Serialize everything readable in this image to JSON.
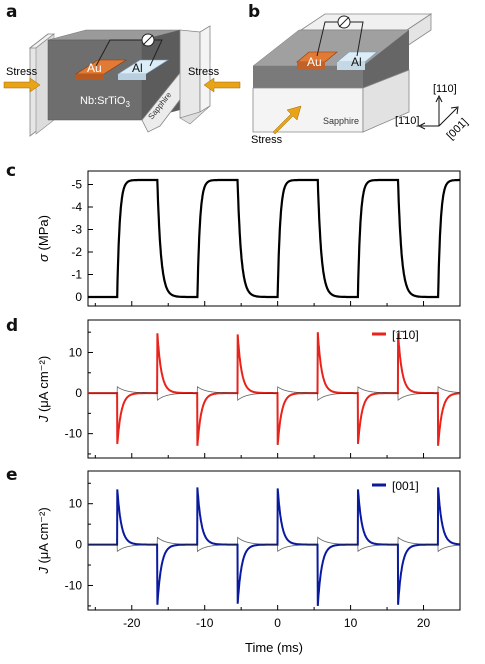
{
  "panel_letters": [
    "a",
    "b",
    "c",
    "d",
    "e"
  ],
  "schematic_a": {
    "stress_left": "Stress",
    "stress_right": "Stress",
    "electrode_au": "Au",
    "electrode_al": "Al",
    "substrate_label": "Nb:SrTiO",
    "substrate_sub": "3",
    "sapphire": "Sapphire",
    "colors": {
      "au": "#e07a35",
      "al": "#d9ecf8",
      "stress": "#e8a317",
      "substrate": "#707070"
    }
  },
  "schematic_b": {
    "electrode_au": "Au",
    "electrode_al": "Al",
    "sapphire": "Sapphire",
    "stress": "Stress",
    "axes": {
      "up": "[110]",
      "left": "[1̄10]",
      "diag": "[001]"
    }
  },
  "chart_data": [
    {
      "type": "line",
      "panel": "c",
      "ylabel_symbol": "σ",
      "ylabel_unit": "(MPa)",
      "yticks": [
        "-5",
        "-4",
        "-3",
        "-2",
        "-1",
        "0"
      ],
      "ylim": [
        0.4,
        -5.6
      ],
      "xlim": [
        -26,
        25
      ],
      "series": [
        {
          "color": "#000000",
          "rise_times_ms": [
            -22,
            -11,
            0,
            11,
            22
          ],
          "fall_times_ms": [
            -16.5,
            -5.5,
            5.5,
            16.5
          ],
          "low_value_MPa": 0,
          "high_value_MPa": -5.2
        }
      ]
    },
    {
      "type": "line",
      "panel": "d",
      "ylabel_symbol": "J",
      "ylabel_unit": "(μA cm⁻²)",
      "yticks": [
        "10",
        "0",
        "-10"
      ],
      "ylim": [
        -16,
        18
      ],
      "xlim": [
        -26,
        25
      ],
      "legend": "[1̄10]",
      "legend_position": "top-right",
      "series": [
        {
          "name": "[1̄10]",
          "color": "#e8231c",
          "negative_spikes_ms": [
            -22,
            -11,
            0,
            11,
            22
          ],
          "negative_peak": -13,
          "positive_spikes_ms": [
            -16.5,
            -5.5,
            5.5,
            16.5
          ],
          "positive_peak": 15
        }
      ]
    },
    {
      "type": "line",
      "panel": "e",
      "ylabel_symbol": "J",
      "ylabel_unit": "(μA cm⁻²)",
      "yticks": [
        "10",
        "0",
        "-10"
      ],
      "ylim": [
        -16,
        18
      ],
      "xlim": [
        -26,
        25
      ],
      "legend": "[001]",
      "legend_position": "top-right",
      "series": [
        {
          "name": "[001]",
          "color": "#0a1a9e",
          "positive_spikes_ms": [
            -22,
            -11,
            0,
            11,
            22
          ],
          "positive_peak": 14,
          "negative_spikes_ms": [
            -16.5,
            -5.5,
            5.5,
            16.5
          ],
          "negative_peak": -15
        }
      ]
    }
  ],
  "xaxis": {
    "ticks": [
      "-20",
      "-10",
      "0",
      "10",
      "20"
    ],
    "tick_values": [
      -20,
      -10,
      0,
      10,
      20
    ],
    "label": "Time (ms)"
  }
}
